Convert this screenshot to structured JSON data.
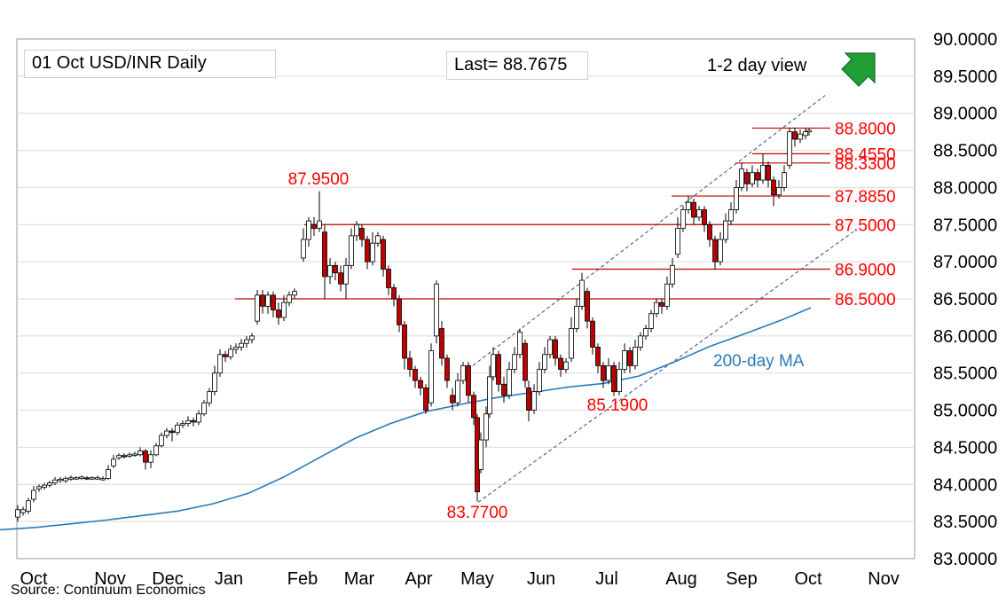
{
  "header": {
    "title": "01 Oct  USD/INR  Daily",
    "last": "Last= 88.7675",
    "view": "1-2 day view",
    "view_icon": "arrow-up-right-icon"
  },
  "footer": {
    "source": "Source: Continuum Economics"
  },
  "colors": {
    "up_candle": "#ffffff",
    "down_candle": "#c00000",
    "candle_outline": "#000000",
    "level_line": "#c00000",
    "label": "#ff0000",
    "ma_line": "#2a7ab8",
    "channel": "#2f4d8a",
    "arrow": "#1e9e33",
    "grid": "#d9d9d9"
  },
  "chart_data": {
    "type": "candlestick",
    "title": "01 Oct  USD/INR  Daily",
    "ylim": [
      83.0,
      90.0
    ],
    "yticks": [
      "90.0000",
      "89.5000",
      "89.0000",
      "88.5000",
      "88.0000",
      "87.5000",
      "87.0000",
      "86.5000",
      "86.0000",
      "85.5000",
      "85.0000",
      "84.5000",
      "84.0000",
      "83.5000",
      "83.0000"
    ],
    "xticks": [
      "Oct",
      "Nov",
      "Dec",
      "Jan",
      "Feb",
      "Mar",
      "Apr",
      "May",
      "Jun",
      "Jul",
      "Aug",
      "Sep",
      "Oct",
      "Nov"
    ],
    "grid": "horizontal",
    "levels": [
      {
        "value": 88.8,
        "label": "88.8000",
        "from": "Sep"
      },
      {
        "value": 88.455,
        "label": "88.4550",
        "from": "Sep"
      },
      {
        "value": 88.33,
        "label": "88.3300",
        "from": "Sep"
      },
      {
        "value": 87.885,
        "label": "87.8850",
        "from": "Aug"
      },
      {
        "value": 87.5,
        "label": "87.5000",
        "from": "Feb"
      },
      {
        "value": 86.9,
        "label": "86.9000",
        "from": "Jun"
      },
      {
        "value": 86.5,
        "label": "86.5000",
        "from": "Jan"
      }
    ],
    "point_labels": [
      {
        "text": "87.9500",
        "value": 87.95,
        "near": "Feb"
      },
      {
        "text": "83.7700",
        "value": 83.77,
        "near": "May"
      },
      {
        "text": "85.1900",
        "value": 85.19,
        "near": "Jul"
      }
    ],
    "series": [
      {
        "name": "200-day MA",
        "type": "line",
        "points": [
          [
            0,
            83.39
          ],
          [
            40,
            83.42
          ],
          [
            80,
            83.47
          ],
          [
            120,
            83.52
          ],
          [
            160,
            83.58
          ],
          [
            200,
            83.64
          ],
          [
            240,
            83.74
          ],
          [
            280,
            83.88
          ],
          [
            320,
            84.1
          ],
          [
            360,
            84.36
          ],
          [
            400,
            84.62
          ],
          [
            440,
            84.82
          ],
          [
            480,
            84.98
          ],
          [
            520,
            85.08
          ],
          [
            560,
            85.17
          ],
          [
            600,
            85.24
          ],
          [
            640,
            85.31
          ],
          [
            680,
            85.36
          ],
          [
            720,
            85.46
          ],
          [
            760,
            85.65
          ],
          [
            800,
            85.86
          ],
          [
            840,
            86.03
          ],
          [
            880,
            86.21
          ],
          [
            914,
            86.38
          ]
        ]
      },
      {
        "name": "",
        "type": "channel-upper",
        "points": [
          [
            522,
            85.5
          ],
          [
            930,
            89.24
          ]
        ]
      },
      {
        "name": "",
        "type": "channel-lower",
        "points": [
          [
            539,
            83.76
          ],
          [
            965,
            87.43
          ]
        ]
      }
    ],
    "candles": [
      [
        20,
        83.56,
        83.66,
        83.5,
        83.72
      ],
      [
        26,
        83.62,
        83.66,
        83.58,
        83.7
      ],
      [
        32,
        83.64,
        83.78,
        83.6,
        83.82
      ],
      [
        38,
        83.8,
        83.92,
        83.76,
        83.98
      ],
      [
        44,
        83.94,
        83.97,
        83.9,
        84.0
      ],
      [
        50,
        83.96,
        83.99,
        83.93,
        84.02
      ],
      [
        56,
        83.99,
        84.02,
        83.96,
        84.05
      ],
      [
        62,
        84.02,
        84.06,
        83.99,
        84.1
      ],
      [
        68,
        84.06,
        84.07,
        84.02,
        84.1
      ],
      [
        74,
        84.05,
        84.08,
        84.02,
        84.11
      ],
      [
        80,
        84.07,
        84.09,
        84.05,
        84.12
      ],
      [
        86,
        84.08,
        84.09,
        84.06,
        84.11
      ],
      [
        92,
        84.08,
        84.1,
        84.06,
        84.12
      ],
      [
        98,
        84.09,
        84.08,
        84.06,
        84.11
      ],
      [
        104,
        84.08,
        84.09,
        84.06,
        84.11
      ],
      [
        110,
        84.08,
        84.09,
        84.06,
        84.12
      ],
      [
        116,
        84.08,
        84.08,
        84.05,
        84.11
      ],
      [
        122,
        84.08,
        84.2,
        84.06,
        84.26
      ],
      [
        128,
        84.25,
        84.34,
        84.22,
        84.4
      ],
      [
        134,
        84.36,
        84.39,
        84.33,
        84.42
      ],
      [
        140,
        84.39,
        84.38,
        84.35,
        84.42
      ],
      [
        146,
        84.38,
        84.4,
        84.36,
        84.43
      ],
      [
        152,
        84.4,
        84.41,
        84.37,
        84.44
      ],
      [
        158,
        84.4,
        84.45,
        84.38,
        84.5
      ],
      [
        164,
        84.45,
        84.3,
        84.2,
        84.48
      ],
      [
        170,
        84.3,
        84.4,
        84.22,
        84.46
      ],
      [
        176,
        84.4,
        84.52,
        84.38,
        84.56
      ],
      [
        182,
        84.52,
        84.66,
        84.5,
        84.7
      ],
      [
        188,
        84.66,
        84.72,
        84.62,
        84.76
      ],
      [
        194,
        84.72,
        84.7,
        84.58,
        84.76
      ],
      [
        200,
        84.7,
        84.8,
        84.66,
        84.84
      ],
      [
        206,
        84.8,
        84.82,
        84.76,
        84.86
      ],
      [
        212,
        84.82,
        84.86,
        84.78,
        84.92
      ],
      [
        218,
        84.86,
        84.84,
        84.78,
        84.9
      ],
      [
        224,
        84.84,
        84.95,
        84.8,
        85.0
      ],
      [
        230,
        84.95,
        85.1,
        84.92,
        85.14
      ],
      [
        236,
        85.1,
        85.25,
        85.05,
        85.3
      ],
      [
        242,
        85.25,
        85.5,
        85.2,
        85.6
      ],
      [
        248,
        85.5,
        85.75,
        85.45,
        85.82
      ],
      [
        254,
        85.75,
        85.72,
        85.65,
        85.8
      ],
      [
        260,
        85.72,
        85.82,
        85.68,
        85.88
      ],
      [
        266,
        85.82,
        85.85,
        85.76,
        85.9
      ],
      [
        272,
        85.85,
        85.9,
        85.8,
        85.96
      ],
      [
        278,
        85.9,
        85.95,
        85.84,
        86.0
      ],
      [
        284,
        85.95,
        86.0,
        85.9,
        86.04
      ],
      [
        290,
        86.2,
        86.55,
        86.15,
        86.62
      ],
      [
        296,
        86.55,
        86.4,
        86.3,
        86.62
      ],
      [
        302,
        86.4,
        86.55,
        86.3,
        86.6
      ],
      [
        308,
        86.55,
        86.35,
        86.25,
        86.6
      ],
      [
        314,
        86.35,
        86.25,
        86.15,
        86.45
      ],
      [
        320,
        86.25,
        86.45,
        86.2,
        86.55
      ],
      [
        326,
        86.45,
        86.55,
        86.4,
        86.6
      ],
      [
        332,
        86.55,
        86.6,
        86.5,
        86.64
      ],
      [
        342,
        87.05,
        87.3,
        87.0,
        87.45
      ],
      [
        348,
        87.3,
        87.55,
        87.2,
        87.6
      ],
      [
        354,
        87.5,
        87.45,
        87.35,
        87.6
      ],
      [
        360,
        87.45,
        87.55,
        87.4,
        87.95
      ],
      [
        366,
        87.4,
        86.8,
        86.5,
        87.5
      ],
      [
        372,
        86.8,
        86.95,
        86.7,
        87.05
      ],
      [
        378,
        86.95,
        86.85,
        86.75,
        87.0
      ],
      [
        384,
        86.85,
        86.7,
        86.6,
        86.95
      ],
      [
        390,
        86.7,
        86.95,
        86.5,
        87.05
      ],
      [
        396,
        86.95,
        87.35,
        86.9,
        87.45
      ],
      [
        402,
        87.35,
        87.5,
        87.28,
        87.55
      ],
      [
        408,
        87.45,
        87.3,
        87.2,
        87.5
      ],
      [
        414,
        87.3,
        87.0,
        86.9,
        87.35
      ],
      [
        420,
        87.0,
        87.25,
        86.95,
        87.4
      ],
      [
        426,
        87.25,
        87.35,
        87.2,
        87.4
      ],
      [
        432,
        87.3,
        86.9,
        86.8,
        87.35
      ],
      [
        438,
        86.9,
        86.65,
        86.55,
        86.95
      ],
      [
        444,
        86.65,
        86.5,
        86.4,
        86.7
      ],
      [
        450,
        86.5,
        86.15,
        86.05,
        86.55
      ],
      [
        456,
        86.15,
        85.7,
        85.55,
        86.2
      ],
      [
        462,
        85.7,
        85.55,
        85.45,
        85.8
      ],
      [
        468,
        85.55,
        85.4,
        85.3,
        85.6
      ],
      [
        474,
        85.4,
        85.3,
        85.2,
        85.45
      ],
      [
        480,
        85.3,
        85.0,
        84.95,
        85.35
      ],
      [
        486,
        85.1,
        85.8,
        85.05,
        85.9
      ],
      [
        492,
        86.0,
        86.7,
        85.9,
        86.75
      ],
      [
        498,
        86.1,
        85.7,
        85.6,
        86.2
      ],
      [
        504,
        85.7,
        85.4,
        85.3,
        85.75
      ],
      [
        510,
        85.2,
        85.1,
        85.0,
        85.3
      ],
      [
        516,
        85.1,
        85.4,
        85.05,
        85.5
      ],
      [
        522,
        85.4,
        85.6,
        85.35,
        85.65
      ],
      [
        528,
        85.6,
        85.2,
        85.1,
        85.65
      ],
      [
        534,
        85.2,
        84.9,
        84.8,
        85.25
      ],
      [
        538,
        84.9,
        83.9,
        83.77,
        84.95
      ],
      [
        542,
        84.2,
        84.6,
        84.15,
        84.7
      ],
      [
        548,
        84.6,
        84.95,
        84.5,
        85.05
      ],
      [
        552,
        84.95,
        85.45,
        84.9,
        85.6
      ],
      [
        556,
        85.45,
        85.75,
        85.4,
        85.85
      ],
      [
        562,
        85.75,
        85.35,
        85.25,
        85.8
      ],
      [
        568,
        85.35,
        85.2,
        85.1,
        85.45
      ],
      [
        574,
        85.2,
        85.55,
        85.15,
        85.65
      ],
      [
        580,
        85.55,
        85.75,
        85.5,
        85.85
      ],
      [
        586,
        85.75,
        86.05,
        85.7,
        86.1
      ],
      [
        592,
        85.9,
        85.4,
        85.3,
        85.95
      ],
      [
        596,
        85.3,
        85.0,
        84.85,
        85.4
      ],
      [
        602,
        85.0,
        85.25,
        84.95,
        85.35
      ],
      [
        608,
        85.25,
        85.55,
        85.2,
        85.65
      ],
      [
        614,
        85.55,
        85.75,
        85.5,
        85.85
      ],
      [
        620,
        85.75,
        85.95,
        85.7,
        86.0
      ],
      [
        626,
        85.95,
        85.7,
        85.6,
        86.0
      ],
      [
        632,
        85.7,
        85.55,
        85.45,
        85.75
      ],
      [
        638,
        85.55,
        85.65,
        85.5,
        85.7
      ],
      [
        644,
        85.7,
        86.1,
        85.65,
        86.25
      ],
      [
        650,
        86.1,
        86.4,
        86.05,
        86.5
      ],
      [
        656,
        86.4,
        86.75,
        86.35,
        86.85
      ],
      [
        662,
        86.6,
        86.2,
        86.1,
        86.65
      ],
      [
        668,
        86.2,
        85.85,
        85.75,
        86.25
      ],
      [
        674,
        85.85,
        85.6,
        85.5,
        85.9
      ],
      [
        680,
        85.6,
        85.4,
        85.3,
        85.65
      ],
      [
        686,
        85.4,
        85.6,
        85.35,
        85.7
      ],
      [
        692,
        85.6,
        85.25,
        85.19,
        85.65
      ],
      [
        698,
        85.25,
        85.55,
        85.2,
        85.65
      ],
      [
        704,
        85.55,
        85.8,
        85.5,
        85.9
      ],
      [
        710,
        85.8,
        85.6,
        85.5,
        85.85
      ],
      [
        716,
        85.6,
        85.85,
        85.55,
        85.95
      ],
      [
        722,
        85.85,
        86.0,
        85.8,
        86.05
      ],
      [
        728,
        86.0,
        86.1,
        85.95,
        86.15
      ],
      [
        734,
        86.1,
        86.3,
        86.05,
        86.35
      ],
      [
        740,
        86.3,
        86.45,
        86.25,
        86.5
      ],
      [
        746,
        86.45,
        86.4,
        86.3,
        86.5
      ],
      [
        752,
        86.4,
        86.7,
        86.35,
        86.8
      ],
      [
        758,
        86.7,
        86.95,
        86.65,
        87.05
      ],
      [
        764,
        87.1,
        87.45,
        87.05,
        87.6
      ],
      [
        770,
        87.45,
        87.7,
        87.4,
        87.75
      ],
      [
        776,
        87.7,
        87.8,
        87.65,
        87.885
      ],
      [
        782,
        87.8,
        87.6,
        87.5,
        87.85
      ],
      [
        788,
        87.6,
        87.7,
        87.55,
        87.75
      ],
      [
        794,
        87.7,
        87.5,
        87.4,
        87.75
      ],
      [
        800,
        87.5,
        87.3,
        87.2,
        87.55
      ],
      [
        806,
        87.3,
        87.0,
        86.9,
        87.35
      ],
      [
        812,
        87.0,
        87.3,
        86.95,
        87.4
      ],
      [
        818,
        87.3,
        87.55,
        87.25,
        87.65
      ],
      [
        824,
        87.55,
        87.7,
        87.5,
        87.8
      ],
      [
        830,
        87.7,
        88.0,
        87.65,
        88.1
      ],
      [
        836,
        88.0,
        88.25,
        87.95,
        88.33
      ],
      [
        842,
        88.2,
        88.05,
        87.95,
        88.25
      ],
      [
        848,
        88.05,
        88.2,
        88.0,
        88.3
      ],
      [
        854,
        88.2,
        88.1,
        88.0,
        88.25
      ],
      [
        860,
        88.1,
        88.3,
        88.05,
        88.455
      ],
      [
        866,
        88.3,
        88.1,
        88.0,
        88.35
      ],
      [
        872,
        88.1,
        87.9,
        87.75,
        88.15
      ],
      [
        878,
        87.9,
        88.0,
        87.85,
        88.1
      ],
      [
        884,
        88.0,
        88.2,
        87.95,
        88.3
      ],
      [
        890,
        88.3,
        88.75,
        88.25,
        88.8
      ],
      [
        896,
        88.75,
        88.65,
        88.55,
        88.8
      ],
      [
        902,
        88.65,
        88.72,
        88.6,
        88.78
      ],
      [
        908,
        88.7,
        88.75,
        88.65,
        88.8
      ],
      [
        912,
        88.75,
        88.77,
        88.7,
        88.8
      ]
    ]
  }
}
